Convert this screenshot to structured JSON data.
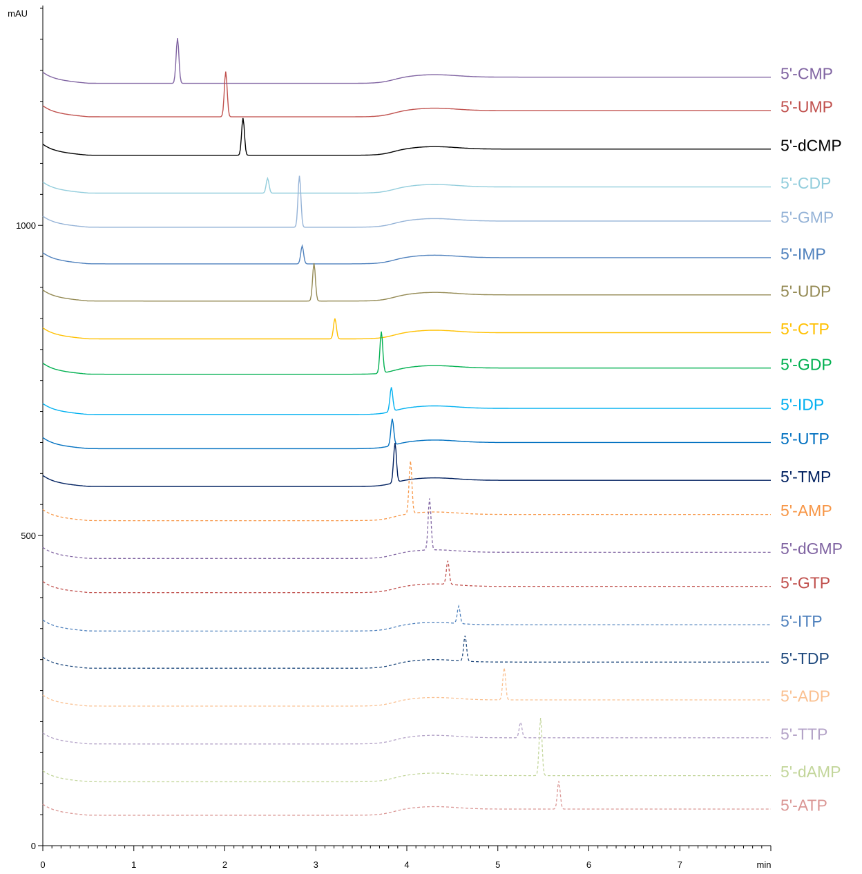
{
  "chart_data": {
    "type": "line",
    "title": "",
    "xlabel": "min",
    "ylabel": "mAU",
    "xlim": [
      0,
      8
    ],
    "ylim": [
      0,
      1350
    ],
    "x_ticks": [
      0,
      1,
      2,
      3,
      4,
      5,
      6,
      7
    ],
    "x_tick_labels": [
      "0",
      "1",
      "2",
      "3",
      "4",
      "5",
      "6",
      "7"
    ],
    "y_ticks": [
      0,
      500,
      1000
    ],
    "y_tick_labels": [
      "0",
      "500",
      "1000"
    ],
    "grid": false,
    "legend": "labels at right end of each trace",
    "series": [
      {
        "name": "5'-CMP",
        "color": "#8064a2",
        "dash": "solid",
        "baseline": 1235,
        "peaks": [
          {
            "x": 1.48,
            "height": 73
          }
        ]
      },
      {
        "name": "5'-UMP",
        "color": "#c0504d",
        "dash": "solid",
        "baseline": 1181,
        "peaks": [
          {
            "x": 2.01,
            "height": 73
          }
        ]
      },
      {
        "name": "5'-dCMP",
        "color": "#000000",
        "dash": "solid",
        "baseline": 1119,
        "peaks": [
          {
            "x": 2.2,
            "height": 60
          }
        ]
      },
      {
        "name": "5'-CDP",
        "color": "#92cddc",
        "dash": "solid",
        "baseline": 1058,
        "peaks": [
          {
            "x": 2.47,
            "height": 24
          }
        ]
      },
      {
        "name": "5'-GMP",
        "color": "#95b3d7",
        "dash": "solid",
        "baseline": 1003,
        "peaks": [
          {
            "x": 2.82,
            "height": 83
          }
        ]
      },
      {
        "name": "5'-IMP",
        "color": "#4f81bd",
        "dash": "solid",
        "baseline": 944,
        "peaks": [
          {
            "x": 2.85,
            "height": 29
          }
        ]
      },
      {
        "name": "5'-UDP",
        "color": "#948a54",
        "dash": "solid",
        "baseline": 884,
        "peaks": [
          {
            "x": 2.98,
            "height": 61
          }
        ]
      },
      {
        "name": "5'-CTP",
        "color": "#ffc000",
        "dash": "solid",
        "baseline": 823,
        "peaks": [
          {
            "x": 3.21,
            "height": 33
          }
        ]
      },
      {
        "name": "5'-GDP",
        "color": "#00b050",
        "dash": "solid",
        "baseline": 766,
        "peaks": [
          {
            "x": 3.72,
            "height": 67
          }
        ]
      },
      {
        "name": "5'-IDP",
        "color": "#00b0f0",
        "dash": "solid",
        "baseline": 701,
        "peaks": [
          {
            "x": 3.83,
            "height": 39
          }
        ]
      },
      {
        "name": "5'-UTP",
        "color": "#0070c0",
        "dash": "solid",
        "baseline": 646,
        "peaks": [
          {
            "x": 3.84,
            "height": 43
          }
        ]
      },
      {
        "name": "5'-TMP",
        "color": "#002060",
        "dash": "solid",
        "baseline": 585,
        "peaks": [
          {
            "x": 3.87,
            "height": 64
          }
        ]
      },
      {
        "name": "5'-AMP",
        "color": "#f79646",
        "dash": "dashed",
        "baseline": 530,
        "peaks": [
          {
            "x": 4.04,
            "height": 85
          }
        ]
      },
      {
        "name": "5'-dGMP",
        "color": "#8064a2",
        "dash": "dashed",
        "baseline": 469,
        "peaks": [
          {
            "x": 4.25,
            "height": 83
          }
        ]
      },
      {
        "name": "5'-GTP",
        "color": "#c0504d",
        "dash": "dashed",
        "baseline": 414,
        "peaks": [
          {
            "x": 4.45,
            "height": 38
          }
        ]
      },
      {
        "name": "5'-ITP",
        "color": "#4f81bd",
        "dash": "dashed",
        "baseline": 352,
        "peaks": [
          {
            "x": 4.57,
            "height": 28
          }
        ]
      },
      {
        "name": "5'-TDP",
        "color": "#1f497d",
        "dash": "dashed",
        "baseline": 292,
        "peaks": [
          {
            "x": 4.64,
            "height": 41
          }
        ]
      },
      {
        "name": "5'-ADP",
        "color": "#fac090",
        "dash": "dashed",
        "baseline": 231,
        "peaks": [
          {
            "x": 5.07,
            "height": 52
          }
        ]
      },
      {
        "name": "5'-TTP",
        "color": "#b3a2c7",
        "dash": "dashed",
        "baseline": 170,
        "peaks": [
          {
            "x": 5.25,
            "height": 25
          }
        ]
      },
      {
        "name": "5'-dAMP",
        "color": "#c3d69b",
        "dash": "dashed",
        "baseline": 109,
        "peaks": [
          {
            "x": 5.47,
            "height": 93
          }
        ]
      },
      {
        "name": "5'-ATP",
        "color": "#da9694",
        "dash": "dashed",
        "baseline": 55,
        "peaks": [
          {
            "x": 5.67,
            "height": 45
          }
        ]
      }
    ]
  }
}
